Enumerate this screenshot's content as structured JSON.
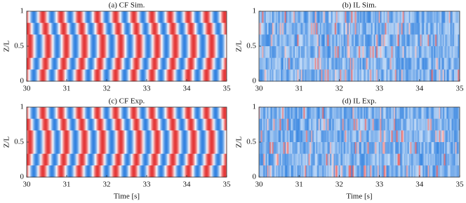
{
  "chart_data": [
    {
      "type": "heatmap",
      "title": "(a) CF Sim.",
      "ylabel": "Z/L",
      "xlim": [
        30,
        35
      ],
      "xticks": [
        30,
        31,
        32,
        33,
        34,
        35
      ],
      "ylim": [
        0,
        1
      ],
      "yticks": [
        0,
        0.5,
        1
      ]
    },
    {
      "type": "heatmap",
      "title": "(b) IL Sim.",
      "ylabel": "Z/L",
      "xlim": [
        30,
        35
      ],
      "xticks": [
        30,
        31,
        32,
        33,
        34,
        35
      ],
      "ylim": [
        0,
        1
      ],
      "yticks": [
        0,
        0.5,
        1
      ]
    },
    {
      "type": "heatmap",
      "title": "(c) CF Exp.",
      "xlabel": "Time [s]",
      "ylabel": "Z/L",
      "xlim": [
        30,
        35
      ],
      "xticks": [
        30,
        31,
        32,
        33,
        34,
        35
      ],
      "ylim": [
        0,
        1
      ],
      "yticks": [
        0,
        0.5,
        1
      ]
    },
    {
      "type": "heatmap",
      "title": "(d) IL Exp.",
      "xlabel": "Time [s]",
      "ylabel": "Z/L",
      "xlim": [
        30,
        35
      ],
      "xticks": [
        30,
        31,
        32,
        33,
        34,
        35
      ],
      "ylim": [
        0,
        1
      ],
      "yticks": [
        0,
        0.5,
        1
      ]
    }
  ]
}
